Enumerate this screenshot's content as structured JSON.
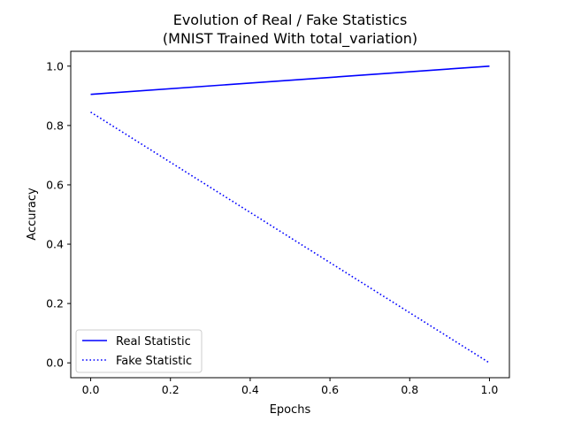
{
  "chart_data": {
    "type": "line",
    "title": "Evolution of Real / Fake Statistics",
    "subtitle": "(MNIST Trained With total_variation)",
    "xlabel": "Epochs",
    "ylabel": "Accuracy",
    "x": [
      0.0,
      1.0
    ],
    "xlim": [
      -0.05,
      1.05
    ],
    "ylim": [
      -0.05,
      1.05
    ],
    "xticks": [
      0.0,
      0.2,
      0.4,
      0.6,
      0.8,
      1.0
    ],
    "xtick_labels": [
      "0.0",
      "0.2",
      "0.4",
      "0.6",
      "0.8",
      "1.0"
    ],
    "yticks": [
      0.0,
      0.2,
      0.4,
      0.6,
      0.8,
      1.0
    ],
    "ytick_labels": [
      "0.0",
      "0.2",
      "0.4",
      "0.6",
      "0.8",
      "1.0"
    ],
    "grid": false,
    "legend_position": "lower-left",
    "series": [
      {
        "name": "Real Statistic",
        "values": [
          0.905,
          1.0
        ],
        "color": "#0000ff",
        "style": "solid"
      },
      {
        "name": "Fake Statistic",
        "values": [
          0.845,
          0.0
        ],
        "color": "#0000ff",
        "style": "dotted"
      }
    ]
  }
}
